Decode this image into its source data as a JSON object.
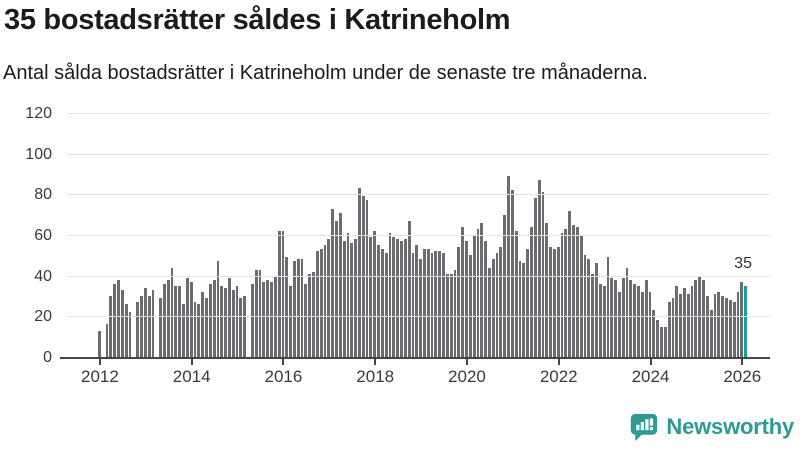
{
  "header": {
    "title": "35 bostadsrätter såldes i Katrineholm",
    "subtitle": "Antal sålda bostadsrätter i Katrineholm under de senaste tre månaderna."
  },
  "chart_data": {
    "type": "bar",
    "title": "35 bostadsrätter såldes i Katrineholm",
    "subtitle": "Antal sålda bostadsrätter i Katrineholm under de senaste tre månaderna.",
    "x_start_month": "2012-01",
    "x_interval": "monthly",
    "values": [
      13,
      0,
      16,
      30,
      36,
      38,
      33,
      26,
      22,
      0,
      27,
      30,
      34,
      30,
      33,
      0,
      29,
      36,
      38,
      44,
      35,
      35,
      26,
      39,
      37,
      27,
      26,
      32,
      29,
      36,
      38,
      47,
      35,
      34,
      39,
      33,
      35,
      29,
      30,
      0,
      36,
      43,
      43,
      37,
      38,
      37,
      40,
      62,
      62,
      49,
      35,
      47,
      48,
      48,
      36,
      41,
      42,
      52,
      53,
      55,
      58,
      73,
      67,
      71,
      57,
      61,
      56,
      58,
      83,
      79,
      77,
      59,
      62,
      55,
      53,
      51,
      61,
      59,
      58,
      57,
      58,
      67,
      51,
      55,
      48,
      53,
      53,
      51,
      52,
      52,
      51,
      41,
      41,
      43,
      54,
      64,
      57,
      50,
      60,
      63,
      66,
      57,
      44,
      48,
      51,
      54,
      70,
      89,
      82,
      62,
      47,
      46,
      53,
      64,
      78,
      87,
      81,
      66,
      54,
      53,
      54,
      61,
      63,
      72,
      65,
      64,
      60,
      50,
      48,
      41,
      46,
      36,
      35,
      49,
      39,
      38,
      32,
      39,
      44,
      38,
      36,
      35,
      32,
      38,
      32,
      23,
      18,
      15,
      15,
      27,
      29,
      35,
      31,
      34,
      31,
      35,
      38,
      40,
      38,
      30,
      23,
      31,
      32,
      30,
      29,
      28,
      27,
      32,
      37,
      35
    ],
    "highlight_index": 169,
    "highlight_value": 35,
    "highlight_value_label": "35",
    "x_tick_years": [
      "2012",
      "2014",
      "2016",
      "2018",
      "2020",
      "2022",
      "2024",
      "2026"
    ],
    "y_ticks": [
      0,
      20,
      40,
      60,
      80,
      100,
      120
    ],
    "ylim": [
      0,
      120
    ],
    "grid": "horizontal",
    "legend": "none",
    "bar_color": "#6b6b70",
    "highlight_color": "#12a0a0",
    "gridline_color": "#e3e3e3",
    "axis_color": "#454549"
  },
  "attribution": {
    "brand": "Newsworthy",
    "brand_color": "#2d9b94"
  }
}
